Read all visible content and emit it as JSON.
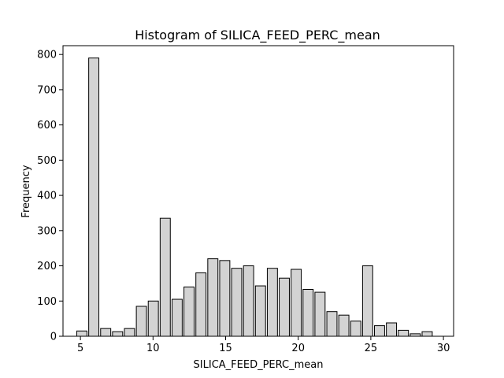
{
  "chart_data": {
    "type": "bar",
    "title": "Histogram of SILICA_FEED_PERC_mean",
    "xlabel": "SILICA_FEED_PERC_mean",
    "ylabel": "Frequency",
    "xlim": [
      3.8,
      30.7
    ],
    "ylim": [
      0,
      825
    ],
    "xticks": [
      5,
      10,
      15,
      20,
      25,
      30
    ],
    "yticks": [
      0,
      100,
      200,
      300,
      400,
      500,
      600,
      700,
      800
    ],
    "grid": false,
    "bar_color": "#d3d3d3",
    "edge_color": "#000000",
    "bin_width": 0.82,
    "bar_width": 0.7,
    "bins": [
      {
        "x": 5.1,
        "value": 15
      },
      {
        "x": 5.92,
        "value": 790
      },
      {
        "x": 6.74,
        "value": 22
      },
      {
        "x": 7.56,
        "value": 13
      },
      {
        "x": 8.38,
        "value": 22
      },
      {
        "x": 9.2,
        "value": 85
      },
      {
        "x": 10.02,
        "value": 100
      },
      {
        "x": 10.84,
        "value": 335
      },
      {
        "x": 11.66,
        "value": 105
      },
      {
        "x": 12.48,
        "value": 140
      },
      {
        "x": 13.3,
        "value": 180
      },
      {
        "x": 14.12,
        "value": 220
      },
      {
        "x": 14.94,
        "value": 215
      },
      {
        "x": 15.76,
        "value": 193
      },
      {
        "x": 16.58,
        "value": 200
      },
      {
        "x": 17.4,
        "value": 143
      },
      {
        "x": 18.22,
        "value": 193
      },
      {
        "x": 19.04,
        "value": 165
      },
      {
        "x": 19.86,
        "value": 190
      },
      {
        "x": 20.68,
        "value": 133
      },
      {
        "x": 21.5,
        "value": 125
      },
      {
        "x": 22.32,
        "value": 70
      },
      {
        "x": 23.14,
        "value": 60
      },
      {
        "x": 23.96,
        "value": 43
      },
      {
        "x": 24.78,
        "value": 200
      },
      {
        "x": 25.6,
        "value": 30
      },
      {
        "x": 26.42,
        "value": 38
      },
      {
        "x": 27.24,
        "value": 17
      },
      {
        "x": 28.06,
        "value": 7
      },
      {
        "x": 28.88,
        "value": 13
      }
    ]
  }
}
